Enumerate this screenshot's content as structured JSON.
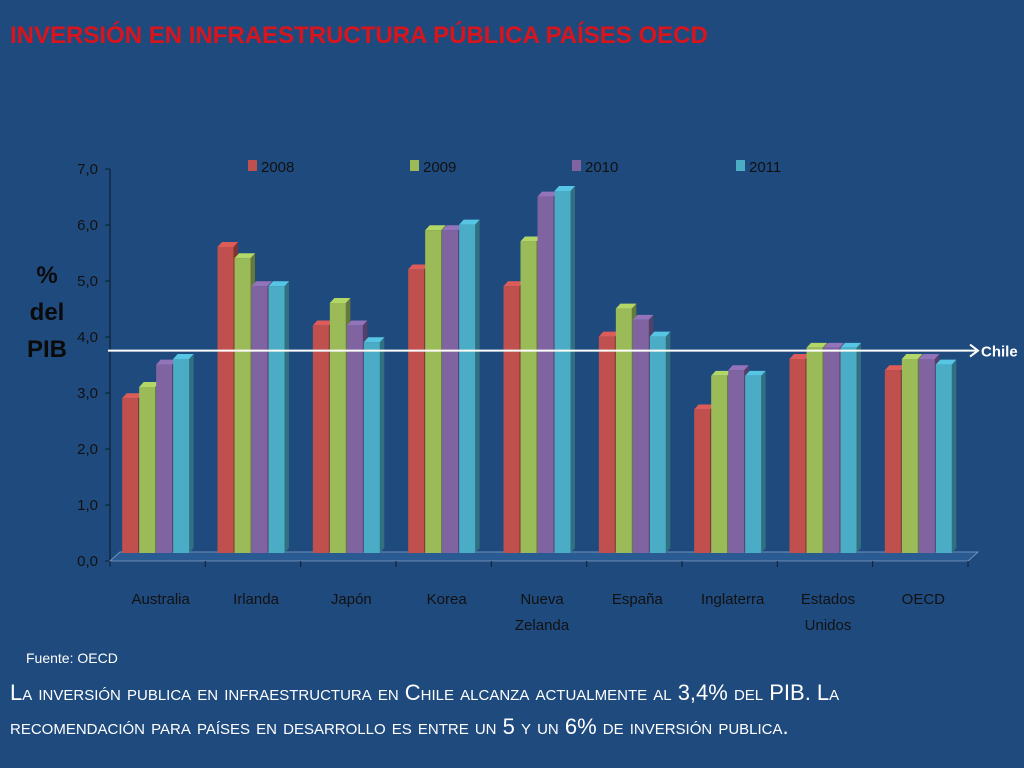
{
  "title": "INVERSIÓN EN INFRAESTRUCTURA PÚBLICA PAÍSES OECD",
  "source": "Fuente: OECD",
  "caption": "La inversión publica en infraestructura en Chile alcanza actualmente al 3,4% del PIB. La recomendación para países en desarrollo es entre un 5 y un 6% de inversión publica.",
  "colors": {
    "background": "#1f4a7e",
    "title": "#d8141c",
    "2008": "#c0504d",
    "2009": "#9bbb59",
    "2010": "#8064a2",
    "2011": "#4bacc6"
  },
  "chart_data": {
    "type": "bar",
    "ylabel": "% del PIB",
    "ylabel_lines": [
      "%",
      "del",
      "PIB"
    ],
    "ylim": [
      0,
      7
    ],
    "yticks": [
      "0,0",
      "1,0",
      "2,0",
      "3,0",
      "4,0",
      "5,0",
      "6,0",
      "7,0"
    ],
    "legend_position": "top",
    "categories": [
      [
        "Australia"
      ],
      [
        "Irlanda"
      ],
      [
        "Japón"
      ],
      [
        "Korea"
      ],
      [
        "Nueva",
        "Zelanda"
      ],
      [
        "España"
      ],
      [
        "Inglaterra"
      ],
      [
        "Estados",
        "Unidos"
      ],
      [
        "OECD"
      ]
    ],
    "series": [
      {
        "name": "2008",
        "color": "#c0504d",
        "values": [
          2.8,
          5.5,
          4.1,
          5.1,
          4.8,
          3.9,
          2.6,
          3.5,
          3.3
        ]
      },
      {
        "name": "2009",
        "color": "#9bbb59",
        "values": [
          3.0,
          5.3,
          4.5,
          5.8,
          5.6,
          4.4,
          3.2,
          3.7,
          3.5
        ]
      },
      {
        "name": "2010",
        "color": "#8064a2",
        "values": [
          3.4,
          4.8,
          4.1,
          5.8,
          6.4,
          4.2,
          3.3,
          3.7,
          3.5
        ]
      },
      {
        "name": "2011",
        "color": "#4bacc6",
        "values": [
          3.5,
          4.8,
          3.8,
          5.9,
          6.5,
          3.9,
          3.2,
          3.7,
          3.4
        ]
      }
    ],
    "reference_line": {
      "label": "Chile",
      "value": 3.4
    }
  }
}
